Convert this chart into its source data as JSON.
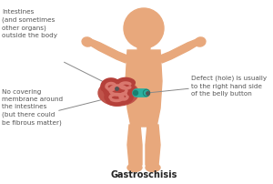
{
  "bg_color": "#ffffff",
  "body_color": "#e8a87c",
  "intestine_outer": "#b5403a",
  "intestine_mid": "#c9534a",
  "intestine_inner": "#d9776e",
  "intestine_bg": "#c0534a",
  "defect_color": "#2ab0a0",
  "defect_dark": "#1a8070",
  "line_color": "#888888",
  "text_color": "#555555",
  "title": "Gastroschisis",
  "label1": "Intestines\n(and sometimes\nother organs)\noutside the body",
  "label2": "No covering\nmembrane around\nthe intestines\n(but there could\nbe fibrous matter)",
  "label3": "Defect (hole) is usually\nto the right hand side\nof the belly button",
  "figsize": [
    3.0,
    2.03
  ],
  "dpi": 100
}
